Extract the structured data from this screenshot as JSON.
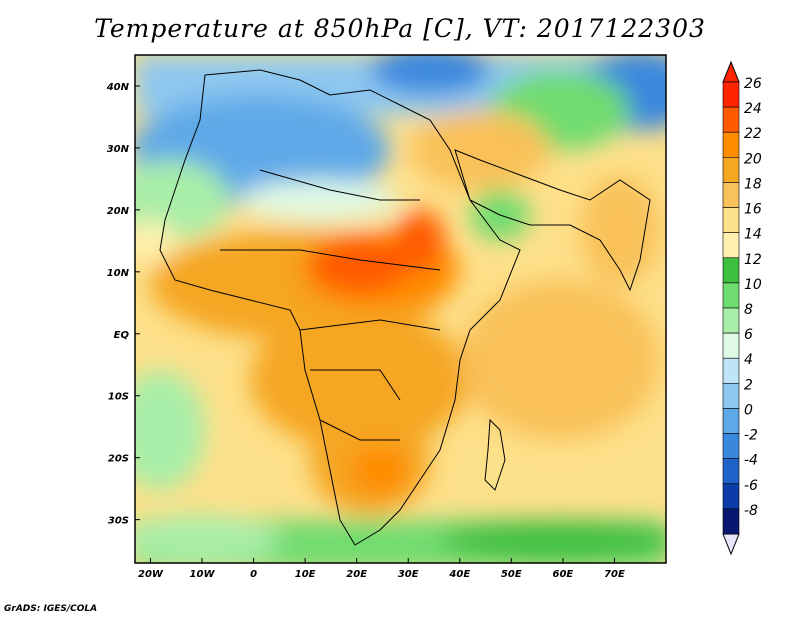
{
  "title": "Temperature at 850hPa [C], VT: 2017122303",
  "credit": "GrADS: IGES/COLA",
  "map": {
    "lon_range": [
      -23,
      80
    ],
    "lat_range": [
      -37,
      45
    ],
    "lat_labels": [
      "40N",
      "30N",
      "20N",
      "10N",
      "EQ",
      "10S",
      "20S",
      "30S"
    ],
    "lat_values": [
      40,
      30,
      20,
      10,
      0,
      -10,
      -20,
      -30
    ],
    "lon_labels": [
      "20W",
      "10W",
      "0",
      "10E",
      "20E",
      "30E",
      "40E",
      "50E",
      "60E",
      "70E"
    ],
    "lon_values": [
      -20,
      -10,
      0,
      10,
      20,
      30,
      40,
      50,
      60,
      70
    ]
  },
  "colorbar": {
    "labels": [
      "26",
      "24",
      "22",
      "20",
      "18",
      "16",
      "14",
      "12",
      "10",
      "8",
      "6",
      "4",
      "2",
      "0",
      "-2",
      "-4",
      "-6",
      "-8"
    ],
    "colors": [
      "#ff2400",
      "#ff5a00",
      "#ff8c00",
      "#f5a623",
      "#f9c159",
      "#fde08a",
      "#fff2b0",
      "#3fbf3f",
      "#6fdc6f",
      "#a8eea8",
      "#e0fae6",
      "#bfe3f7",
      "#8ec8f0",
      "#5ea9e8",
      "#3a88de",
      "#1f62c8",
      "#0b3ca8",
      "#081870"
    ]
  }
}
